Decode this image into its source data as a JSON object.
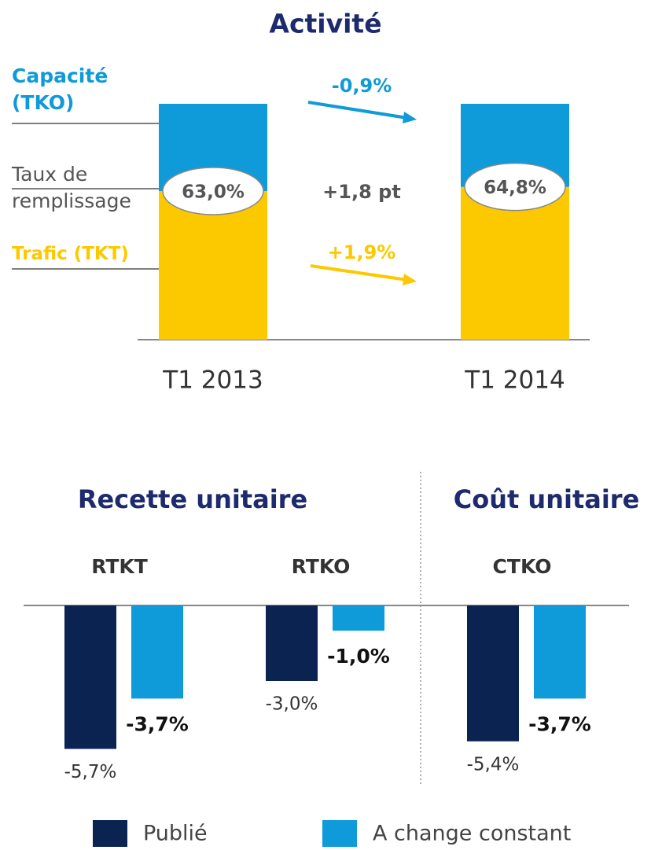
{
  "chart_data": [
    {
      "type": "fill-rate",
      "title": "Activité",
      "categories": [
        "T1 2013",
        "T1 2014"
      ],
      "capacity": {
        "name": "Capacité (TKO)",
        "color": "#0f9ad9",
        "change": -0.9,
        "change_label": "-0,9%"
      },
      "fill_rate": {
        "name": "Taux de remplissage",
        "values": [
          63.0,
          64.8
        ],
        "value_labels": [
          "63,0%",
          "64,8%"
        ],
        "change": 1.8,
        "change_label": "+1,8 pt"
      },
      "traffic": {
        "name": "Trafic (TKT)",
        "color": "#fcc900",
        "change": 1.9,
        "change_label": "+1,9%"
      },
      "ylim": [
        0,
        100
      ]
    },
    {
      "type": "grouped-bar",
      "groups": [
        {
          "title": "Recette unitaire",
          "categories": [
            "RTKT",
            "RTKO"
          ]
        },
        {
          "title": "Coût unitaire",
          "categories": [
            "CTKO"
          ]
        }
      ],
      "series": [
        {
          "name": "Publié",
          "color": "#0b2351",
          "values": [
            -5.7,
            -3.0,
            -5.4
          ],
          "value_labels": [
            "-5,7%",
            "-3,0%",
            "-5,4%"
          ]
        },
        {
          "name": "A change constant",
          "color": "#0f9ad9",
          "values": [
            -3.7,
            -1.0,
            -3.7
          ],
          "value_labels": [
            "-3,7%",
            "-1,0%",
            "-3,7%"
          ]
        }
      ],
      "ylim": [
        -7,
        0
      ]
    }
  ]
}
